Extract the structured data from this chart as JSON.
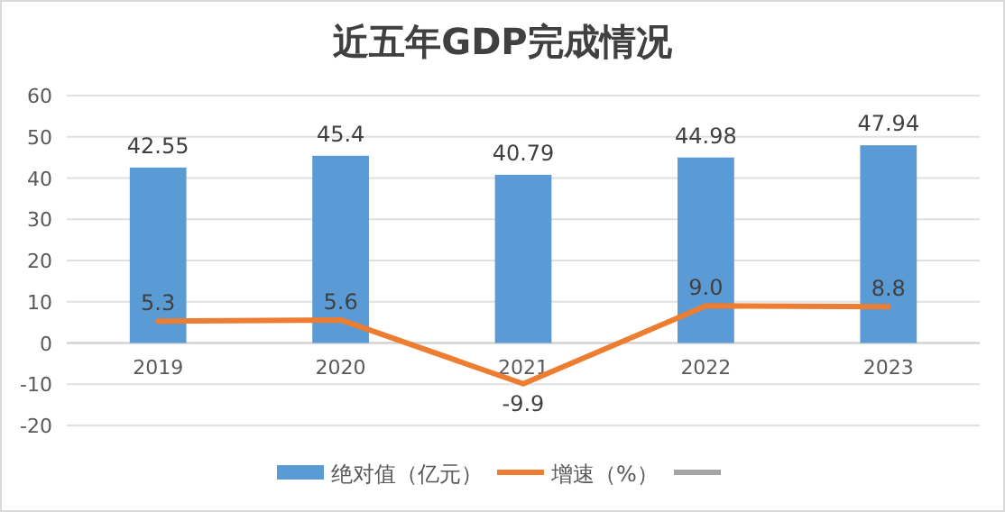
{
  "chart_data": {
    "type": "bar",
    "title": "近五年GDP完成情况",
    "categories": [
      "2019",
      "2020",
      "2021",
      "2022",
      "2023"
    ],
    "series": [
      {
        "name": "绝对值（亿元）",
        "color": "#5b9bd5",
        "values": [
          42.55,
          45.4,
          40.79,
          44.98,
          47.94
        ],
        "value_labels": [
          "42.55",
          "45.4",
          "40.79",
          "44.98",
          "47.94"
        ]
      },
      {
        "name": "增速（%）",
        "type": "line",
        "color": "#ed7d31",
        "values": [
          5.3,
          5.6,
          -9.9,
          9.0,
          8.8
        ],
        "value_labels": [
          "5.3",
          "5.6",
          "-9.9",
          "9.0",
          "8.8"
        ]
      },
      {
        "type": "line",
        "color": "#a5a5a5",
        "values": [
          null,
          null,
          null,
          null,
          null
        ]
      }
    ],
    "ylim": [
      -20,
      60
    ],
    "yticks": [
      -20,
      -10,
      0,
      10,
      20,
      30,
      40,
      50,
      60
    ],
    "grid": "y",
    "legend": "bottom",
    "marker": "none"
  }
}
